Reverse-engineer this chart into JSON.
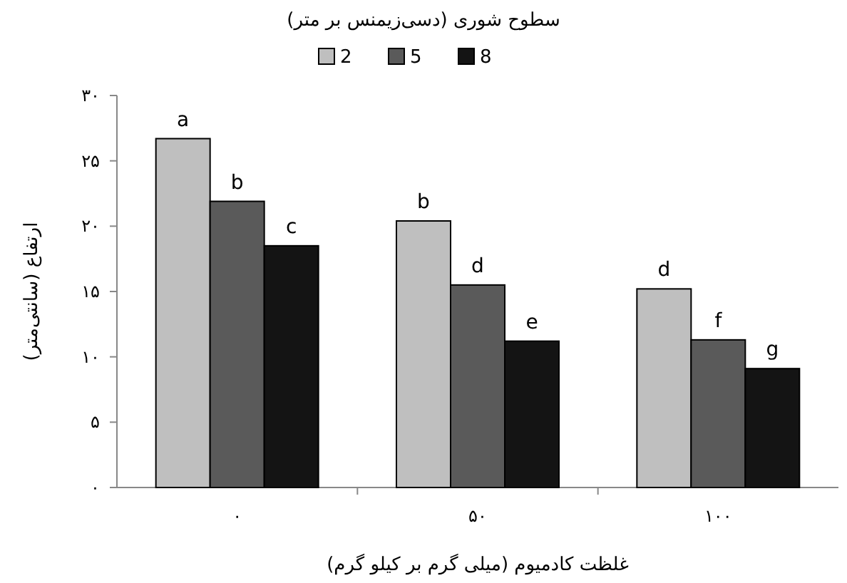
{
  "chart_data": {
    "type": "bar",
    "title": "سطوح شوری (دسی‌زیمنس بر متر)",
    "xlabel": "غلظت کادمیوم (میلی گرم بر کیلو گرم)",
    "ylabel": "ارتفاع (سانتی‌متر)",
    "categories": [
      "۰",
      "۵۰",
      "۱۰۰"
    ],
    "series": [
      {
        "name": "2",
        "color": "#bfbfbf",
        "values": [
          26.7,
          20.4,
          15.2
        ],
        "value_labels": [
          "a",
          "b",
          "d"
        ]
      },
      {
        "name": "5",
        "color": "#5a5a5a",
        "values": [
          21.9,
          15.5,
          11.3
        ],
        "value_labels": [
          "b",
          "d",
          "f"
        ]
      },
      {
        "name": "8",
        "color": "#141414",
        "values": [
          18.5,
          11.2,
          9.1
        ],
        "value_labels": [
          "c",
          "e",
          "g"
        ]
      }
    ],
    "ylim": [
      0,
      30
    ],
    "yticks": [
      {
        "value": 0,
        "label": "۰"
      },
      {
        "value": 5,
        "label": "۵"
      },
      {
        "value": 10,
        "label": "۱۰"
      },
      {
        "value": 15,
        "label": "۱۵"
      },
      {
        "value": 20,
        "label": "۲۰"
      },
      {
        "value": 25,
        "label": "۲۵"
      },
      {
        "value": 30,
        "label": "۳۰"
      }
    ],
    "grid": false,
    "legend": "top"
  }
}
